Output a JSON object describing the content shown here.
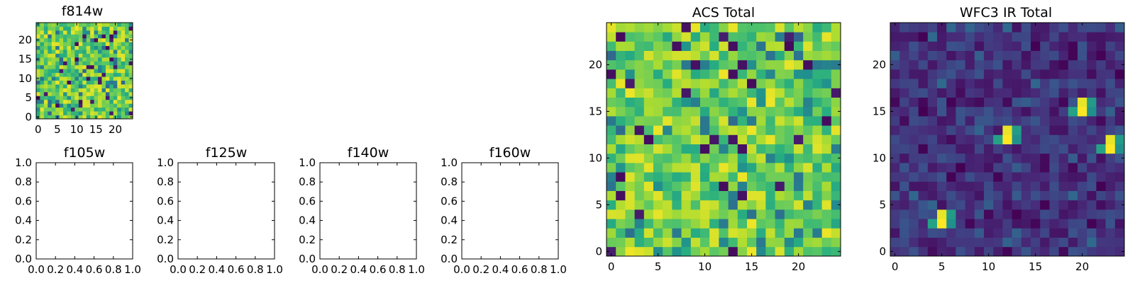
{
  "chart_data": [
    {
      "type": "heatmap",
      "title": "f814w",
      "grid": false,
      "xlim": [
        -0.5,
        24.5
      ],
      "ylim": [
        -0.5,
        24.5
      ],
      "xticks": [
        "0",
        "5",
        "10",
        "15",
        "20"
      ],
      "yticks": [
        "0",
        "5",
        "10",
        "15",
        "20"
      ],
      "colormap": "viridis",
      "pattern": "random noise, mostly green-yellow with scattered dark pixels"
    },
    {
      "type": "scatter",
      "title": "f105w",
      "grid": false,
      "xlim": [
        0,
        1
      ],
      "ylim": [
        0,
        1
      ],
      "xticks": [
        "0.0",
        "0.2",
        "0.4",
        "0.6",
        "0.8",
        "1.0"
      ],
      "yticks": [
        "0.0",
        "0.2",
        "0.4",
        "0.6",
        "0.8",
        "1.0"
      ],
      "series": []
    },
    {
      "type": "scatter",
      "title": "f125w",
      "grid": false,
      "xlim": [
        0,
        1
      ],
      "ylim": [
        0,
        1
      ],
      "xticks": [
        "0.0",
        "0.2",
        "0.4",
        "0.6",
        "0.8",
        "1.0"
      ],
      "yticks": [
        "0.0",
        "0.2",
        "0.4",
        "0.6",
        "0.8",
        "1.0"
      ],
      "series": []
    },
    {
      "type": "scatter",
      "title": "f140w",
      "grid": false,
      "xlim": [
        0,
        1
      ],
      "ylim": [
        0,
        1
      ],
      "xticks": [
        "0.0",
        "0.2",
        "0.4",
        "0.6",
        "0.8",
        "1.0"
      ],
      "yticks": [
        "0.0",
        "0.2",
        "0.4",
        "0.6",
        "0.8",
        "1.0"
      ],
      "series": []
    },
    {
      "type": "scatter",
      "title": "f160w",
      "grid": false,
      "xlim": [
        0,
        1
      ],
      "ylim": [
        0,
        1
      ],
      "xticks": [
        "0.0",
        "0.2",
        "0.4",
        "0.6",
        "0.8",
        "1.0"
      ],
      "yticks": [
        "0.0",
        "0.2",
        "0.4",
        "0.6",
        "0.8",
        "1.0"
      ],
      "series": []
    },
    {
      "type": "heatmap",
      "title": "ACS Total",
      "grid": false,
      "xlim": [
        -0.5,
        24.5
      ],
      "ylim": [
        -0.5,
        24.5
      ],
      "xticks": [
        "0",
        "5",
        "10",
        "15",
        "20"
      ],
      "yticks": [
        "0",
        "5",
        "10",
        "15",
        "20"
      ],
      "colormap": "viridis",
      "pattern": "random noise, mostly green-yellow with scattered dark pixels"
    },
    {
      "type": "heatmap",
      "title": "WFC3 IR Total",
      "grid": false,
      "xlim": [
        -0.5,
        24.5
      ],
      "ylim": [
        -0.5,
        24.5
      ],
      "xticks": [
        "0",
        "5",
        "10",
        "15",
        "20"
      ],
      "yticks": [
        "0",
        "5",
        "10",
        "15",
        "20"
      ],
      "colormap": "viridis",
      "pattern": "dark purple noise background with bright compact sources",
      "bright_sources": [
        {
          "x": 5,
          "y": 3
        },
        {
          "x": 12,
          "y": 12
        },
        {
          "x": 20,
          "y": 15
        },
        {
          "x": 23,
          "y": 11
        }
      ]
    }
  ]
}
